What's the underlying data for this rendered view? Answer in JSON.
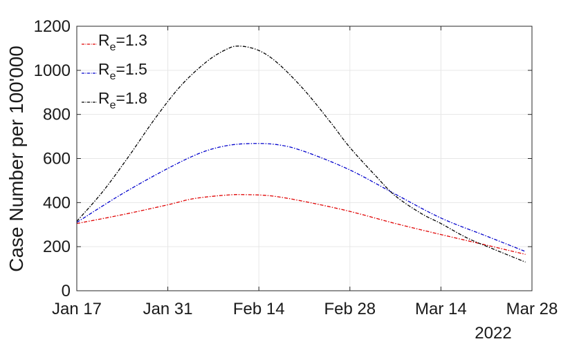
{
  "chart_data": {
    "type": "line",
    "title": "",
    "xlabel": "",
    "ylabel": "Case Number per 100'000",
    "year_label": "2022",
    "x_ticks": [
      {
        "date": "2022-01-17",
        "label": "Jan 17"
      },
      {
        "date": "2022-01-31",
        "label": "Jan 31"
      },
      {
        "date": "2022-02-14",
        "label": "Feb 14"
      },
      {
        "date": "2022-02-28",
        "label": "Feb 28"
      },
      {
        "date": "2022-03-14",
        "label": "Mar 14"
      },
      {
        "date": "2022-03-28",
        "label": "Mar 28"
      }
    ],
    "xlim": [
      "2022-01-17",
      "2022-03-28"
    ],
    "ylim": [
      0,
      1200
    ],
    "y_ticks": [
      0,
      200,
      400,
      600,
      800,
      1000,
      1200
    ],
    "grid": true,
    "legend_position": "top-left",
    "series": [
      {
        "name": "R_e=1.3",
        "label_main": "R",
        "label_sub": "e",
        "label_value": "=1.3",
        "color": "#e00000",
        "style": "dash-dot",
        "points": [
          [
            "2022-01-17",
            305
          ],
          [
            "2022-01-24",
            345
          ],
          [
            "2022-01-31",
            390
          ],
          [
            "2022-02-04",
            418
          ],
          [
            "2022-02-09",
            434
          ],
          [
            "2022-02-12",
            436
          ],
          [
            "2022-02-16",
            430
          ],
          [
            "2022-02-21",
            405
          ],
          [
            "2022-02-28",
            360
          ],
          [
            "2022-03-07",
            305
          ],
          [
            "2022-03-14",
            255
          ],
          [
            "2022-03-21",
            207
          ],
          [
            "2022-03-27",
            165
          ]
        ]
      },
      {
        "name": "R_e=1.5",
        "label_main": "R",
        "label_sub": "e",
        "label_value": "=1.5",
        "color": "#0000cc",
        "style": "dash-dot",
        "points": [
          [
            "2022-01-17",
            310
          ],
          [
            "2022-01-24",
            440
          ],
          [
            "2022-01-31",
            555
          ],
          [
            "2022-02-05",
            625
          ],
          [
            "2022-02-09",
            658
          ],
          [
            "2022-02-13",
            668
          ],
          [
            "2022-02-17",
            662
          ],
          [
            "2022-02-21",
            632
          ],
          [
            "2022-02-28",
            548
          ],
          [
            "2022-03-07",
            438
          ],
          [
            "2022-03-14",
            330
          ],
          [
            "2022-03-21",
            248
          ],
          [
            "2022-03-27",
            178
          ]
        ]
      },
      {
        "name": "R_e=1.8",
        "label_main": "R",
        "label_sub": "e",
        "label_value": "=1.8",
        "color": "#000000",
        "style": "dash-dot",
        "points": [
          [
            "2022-01-17",
            315
          ],
          [
            "2022-01-21",
            450
          ],
          [
            "2022-01-25",
            610
          ],
          [
            "2022-01-29",
            780
          ],
          [
            "2022-02-02",
            930
          ],
          [
            "2022-02-06",
            1040
          ],
          [
            "2022-02-09",
            1095
          ],
          [
            "2022-02-11",
            1110
          ],
          [
            "2022-02-14",
            1090
          ],
          [
            "2022-02-17",
            1030
          ],
          [
            "2022-02-21",
            910
          ],
          [
            "2022-02-25",
            765
          ],
          [
            "2022-02-28",
            650
          ],
          [
            "2022-03-04",
            520
          ],
          [
            "2022-03-07",
            430
          ],
          [
            "2022-03-11",
            350
          ],
          [
            "2022-03-14",
            305
          ],
          [
            "2022-03-18",
            240
          ],
          [
            "2022-03-22",
            190
          ],
          [
            "2022-03-27",
            130
          ]
        ]
      }
    ]
  }
}
